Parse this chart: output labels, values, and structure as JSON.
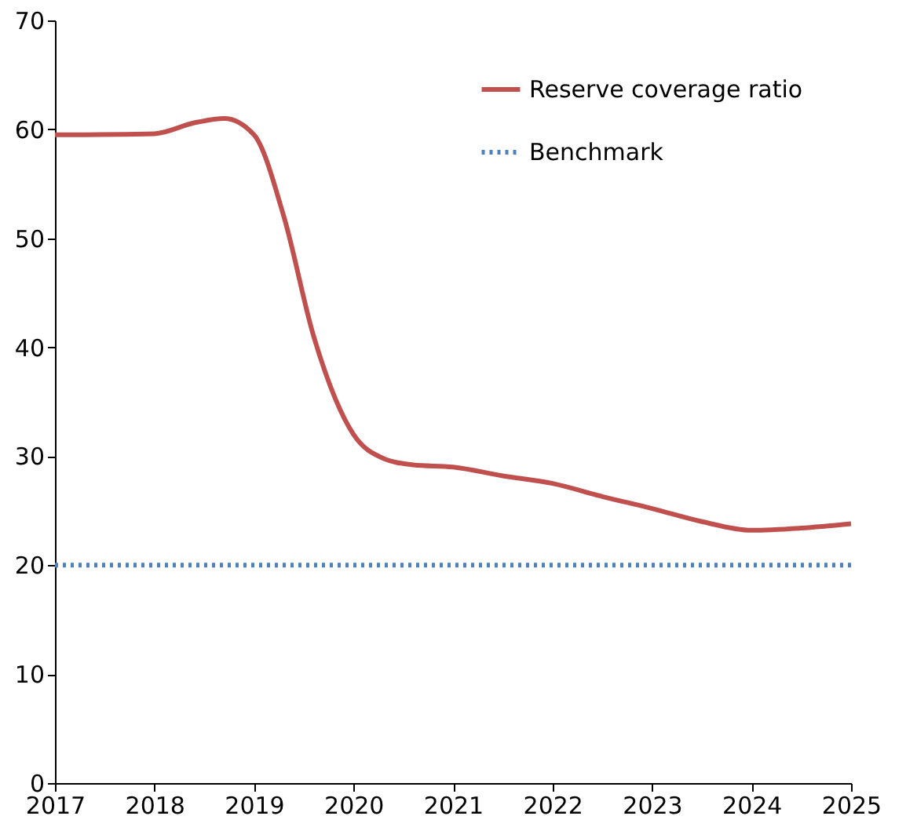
{
  "chart_data": {
    "type": "line",
    "x": [
      2017,
      2018,
      2018.4,
      2018.7,
      2019,
      2019.3,
      2019.6,
      2020,
      2020.3,
      2020.6,
      2021,
      2021.5,
      2022,
      2022.5,
      2023,
      2023.5,
      2024,
      2024.5,
      2025
    ],
    "series": [
      {
        "name": "Reserve coverage ratio",
        "color": "#c0504d",
        "line_style": "solid",
        "values": [
          59.5,
          59.6,
          60.6,
          61,
          59.5,
          52,
          41,
          32,
          29.8,
          29.2,
          29,
          28.2,
          27.5,
          26.3,
          25.2,
          24,
          23.2,
          23.4,
          23.8
        ]
      },
      {
        "name": "Benchmark",
        "color": "#4f81bd",
        "line_style": "dotted",
        "x": [
          2017,
          2025
        ],
        "values": [
          20,
          20
        ]
      }
    ],
    "xlim": [
      2017,
      2025
    ],
    "xticks": [
      2017,
      2018,
      2019,
      2020,
      2021,
      2022,
      2023,
      2024,
      2025
    ],
    "ylim": [
      0,
      70
    ],
    "yticks": [
      0,
      10,
      20,
      30,
      40,
      50,
      60,
      70
    ],
    "grid": false,
    "legend": "top right",
    "marker": "none"
  }
}
